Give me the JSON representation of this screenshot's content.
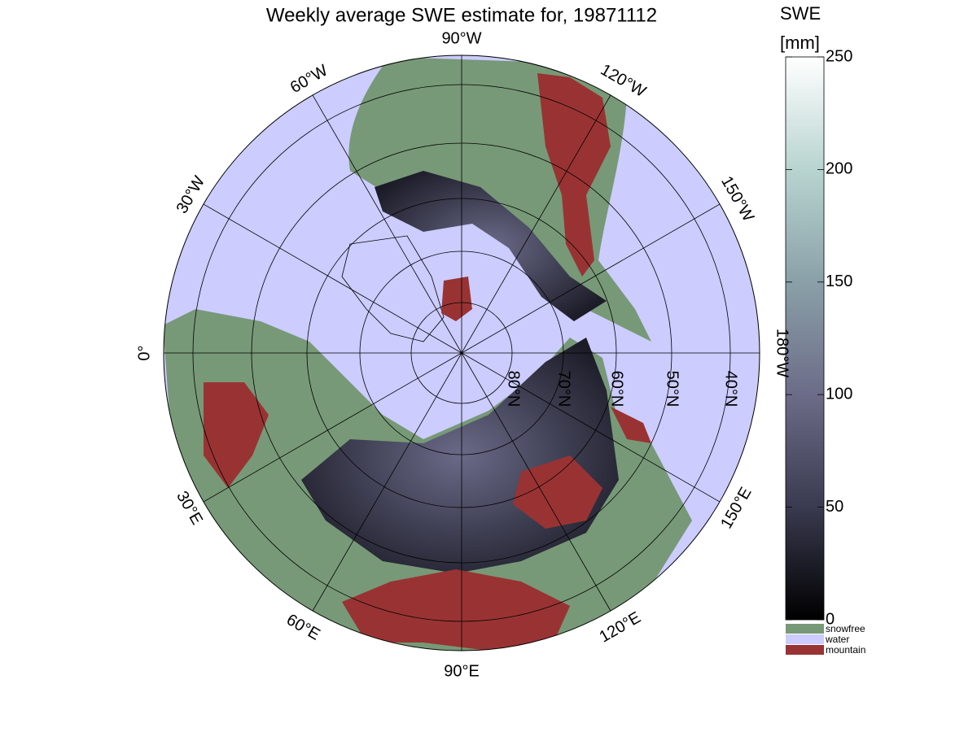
{
  "title": "Weekly average SWE estimate for, 19871112",
  "map": {
    "longitude_labels": [
      "90°W",
      "120°W",
      "150°W",
      "180°W",
      "150°E",
      "120°E",
      "90°E",
      "60°E",
      "30°E",
      "0°",
      "30°W",
      "60°W"
    ],
    "latitude_labels": [
      "80°N",
      "70°N",
      "60°N",
      "50°N",
      "40°N"
    ]
  },
  "colorbar": {
    "label": [
      "SWE",
      "[mm]"
    ],
    "range": [
      0,
      250
    ],
    "ticks": [
      0,
      50,
      100,
      150,
      200,
      250
    ],
    "colors": [
      "#000000",
      "#3a3a50",
      "#6c6c88",
      "#8aa0a8",
      "#b8d4d0",
      "#ffffff"
    ]
  },
  "legend": [
    {
      "label": "snowfree",
      "color": "#779977"
    },
    {
      "label": "water",
      "color": "#ccccff"
    },
    {
      "label": "mountain",
      "color": "#993333"
    }
  ]
}
